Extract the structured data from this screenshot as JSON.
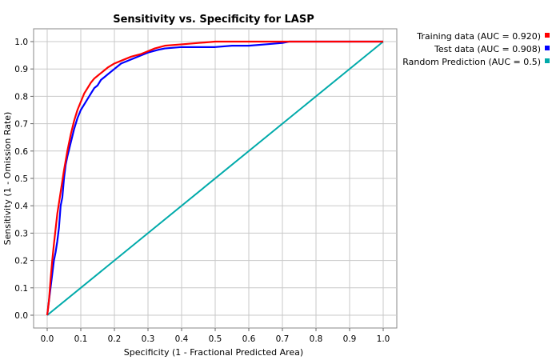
{
  "chart_data": {
    "type": "line",
    "title": "Sensitivity vs. Specificity for LASP",
    "xlabel": "Specificity  (1 - Fractional Predicted Area)",
    "ylabel": "Sensitivity  (1 - Omission Rate)",
    "xlim": [
      0,
      1
    ],
    "ylim": [
      0,
      1
    ],
    "grid": true,
    "legend_position": "top-right-outside",
    "x_ticks": [
      "0.0",
      "0.1",
      "0.2",
      "0.3",
      "0.4",
      "0.5",
      "0.6",
      "0.7",
      "0.8",
      "0.9",
      "1.0"
    ],
    "y_ticks": [
      "0.0",
      "0.1",
      "0.2",
      "0.3",
      "0.4",
      "0.5",
      "0.6",
      "0.7",
      "0.8",
      "0.9",
      "1.0"
    ],
    "series": [
      {
        "name": "Training data (AUC = 0.920)",
        "color": "#ff0000",
        "x": [
          0,
          0.005,
          0.01,
          0.015,
          0.02,
          0.03,
          0.04,
          0.05,
          0.06,
          0.07,
          0.08,
          0.09,
          0.1,
          0.11,
          0.12,
          0.13,
          0.14,
          0.15,
          0.16,
          0.18,
          0.2,
          0.22,
          0.25,
          0.28,
          0.3,
          0.32,
          0.35,
          0.4,
          0.45,
          0.5,
          0.6,
          0.7,
          0.8,
          0.9,
          1.0
        ],
        "y": [
          0,
          0.05,
          0.13,
          0.2,
          0.26,
          0.37,
          0.45,
          0.53,
          0.6,
          0.66,
          0.71,
          0.75,
          0.78,
          0.81,
          0.83,
          0.85,
          0.865,
          0.875,
          0.885,
          0.905,
          0.92,
          0.93,
          0.945,
          0.955,
          0.965,
          0.975,
          0.985,
          0.99,
          0.995,
          1.0,
          1.0,
          1.0,
          1.0,
          1.0,
          1.0
        ]
      },
      {
        "name": "Test data (AUC = 0.908)",
        "color": "#0000ff",
        "x": [
          0,
          0.01,
          0.015,
          0.02,
          0.025,
          0.03,
          0.035,
          0.04,
          0.045,
          0.05,
          0.055,
          0.06,
          0.07,
          0.08,
          0.09,
          0.1,
          0.11,
          0.12,
          0.13,
          0.14,
          0.15,
          0.16,
          0.17,
          0.18,
          0.2,
          0.22,
          0.25,
          0.28,
          0.3,
          0.33,
          0.35,
          0.4,
          0.45,
          0.5,
          0.55,
          0.6,
          0.65,
          0.7,
          0.72,
          0.8,
          0.9,
          1.0
        ],
        "y": [
          0,
          0.1,
          0.15,
          0.2,
          0.23,
          0.27,
          0.32,
          0.4,
          0.43,
          0.5,
          0.55,
          0.58,
          0.63,
          0.68,
          0.72,
          0.75,
          0.77,
          0.79,
          0.81,
          0.83,
          0.84,
          0.86,
          0.87,
          0.88,
          0.9,
          0.92,
          0.935,
          0.95,
          0.96,
          0.97,
          0.975,
          0.98,
          0.98,
          0.98,
          0.985,
          0.985,
          0.99,
          0.995,
          1.0,
          1.0,
          1.0,
          1.0
        ]
      },
      {
        "name": "Random Prediction (AUC = 0.5)",
        "color": "#00aaaa",
        "x": [
          0,
          1
        ],
        "y": [
          0,
          1
        ]
      }
    ]
  }
}
